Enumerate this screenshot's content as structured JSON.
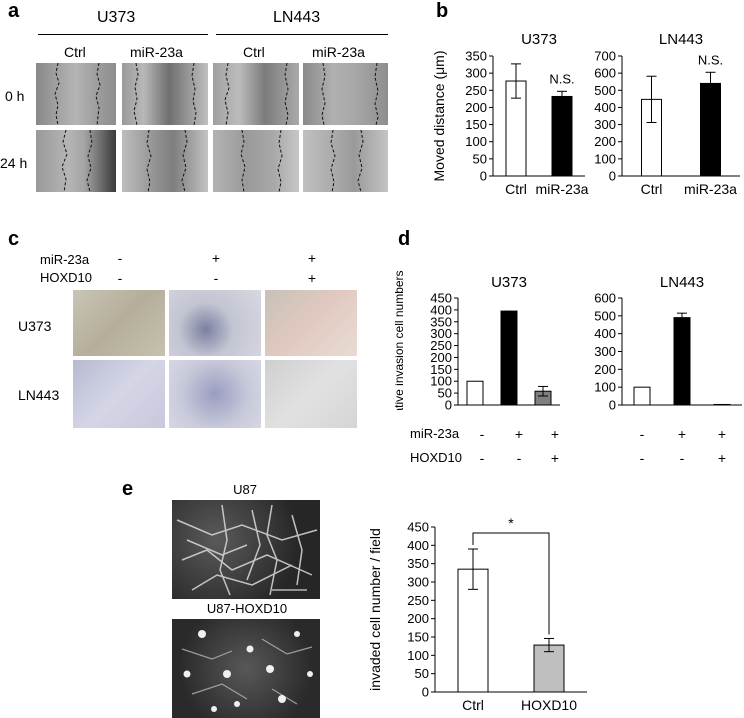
{
  "panels": {
    "a": "a",
    "b": "b",
    "c": "c",
    "d": "d",
    "e": "e"
  },
  "panel_a": {
    "cell_lines": [
      "U373",
      "LN443"
    ],
    "conditions": [
      "Ctrl",
      "miR-23a"
    ],
    "timepoints": [
      "0 h",
      "24 h"
    ]
  },
  "panel_c": {
    "rows": [
      "miR-23a",
      "HOXD10"
    ],
    "signs": [
      [
        "-",
        "+",
        "+"
      ],
      [
        "-",
        "-",
        "+"
      ]
    ],
    "cell_lines": [
      "U373",
      "LN443"
    ]
  },
  "panel_d": {
    "conditions": {
      "rows": [
        "miR-23a",
        "HOXD10"
      ],
      "signs": [
        [
          "-",
          "+",
          "+"
        ],
        [
          "-",
          "-",
          "+"
        ]
      ]
    }
  },
  "panel_e": {
    "photo_labels": [
      "U87",
      "U87-HOXD10"
    ]
  },
  "chart_data": [
    {
      "id": "b-U373",
      "type": "bar",
      "panel": "b",
      "title": "U373",
      "ylabel": "Moved distance (μm)",
      "categories": [
        "Ctrl",
        "miR-23a"
      ],
      "values": [
        277,
        232
      ],
      "errors": [
        50,
        15
      ],
      "ylim": [
        0,
        350
      ],
      "yticks": [
        0,
        50,
        100,
        150,
        200,
        250,
        300,
        350
      ],
      "colors": [
        "#ffffff",
        "#000000"
      ],
      "annotations": [
        "",
        "N.S."
      ]
    },
    {
      "id": "b-LN443",
      "type": "bar",
      "panel": "b",
      "title": "LN443",
      "ylabel": "",
      "categories": [
        "Ctrl",
        "miR-23a"
      ],
      "values": [
        447,
        540
      ],
      "errors": [
        135,
        65
      ],
      "ylim": [
        0,
        700
      ],
      "yticks": [
        0,
        100,
        200,
        300,
        400,
        500,
        600,
        700
      ],
      "colors": [
        "#ffffff",
        "#000000"
      ],
      "annotations": [
        "",
        "N.S."
      ]
    },
    {
      "id": "d-U373",
      "type": "bar",
      "panel": "d",
      "title": "U373",
      "ylabel": "Relative invasion cell numbers",
      "categories": [
        "",
        "",
        ""
      ],
      "values": [
        100,
        395,
        58
      ],
      "errors": [
        0,
        0,
        20
      ],
      "ylim": [
        0,
        450
      ],
      "yticks": [
        0,
        50,
        100,
        150,
        200,
        250,
        300,
        350,
        400,
        450
      ],
      "colors": [
        "#ffffff",
        "#000000",
        "#7f7f7f"
      ]
    },
    {
      "id": "d-LN443",
      "type": "bar",
      "panel": "d",
      "title": "LN443",
      "ylabel": "",
      "categories": [
        "",
        "",
        ""
      ],
      "values": [
        100,
        490,
        3
      ],
      "errors": [
        0,
        25,
        0
      ],
      "ylim": [
        0,
        600
      ],
      "yticks": [
        0,
        100,
        200,
        300,
        400,
        500,
        600
      ],
      "colors": [
        "#ffffff",
        "#000000",
        "#7f7f7f"
      ]
    },
    {
      "id": "e",
      "type": "bar",
      "panel": "e",
      "title": "",
      "ylabel": "invaded cell number / field",
      "categories": [
        "Ctrl",
        "HOXD10"
      ],
      "values": [
        335,
        128
      ],
      "errors": [
        55,
        18
      ],
      "ylim": [
        0,
        450
      ],
      "yticks": [
        0,
        50,
        100,
        150,
        200,
        250,
        300,
        350,
        400,
        450
      ],
      "colors": [
        "#ffffff",
        "#bfbfbf"
      ],
      "significance": "*"
    }
  ]
}
